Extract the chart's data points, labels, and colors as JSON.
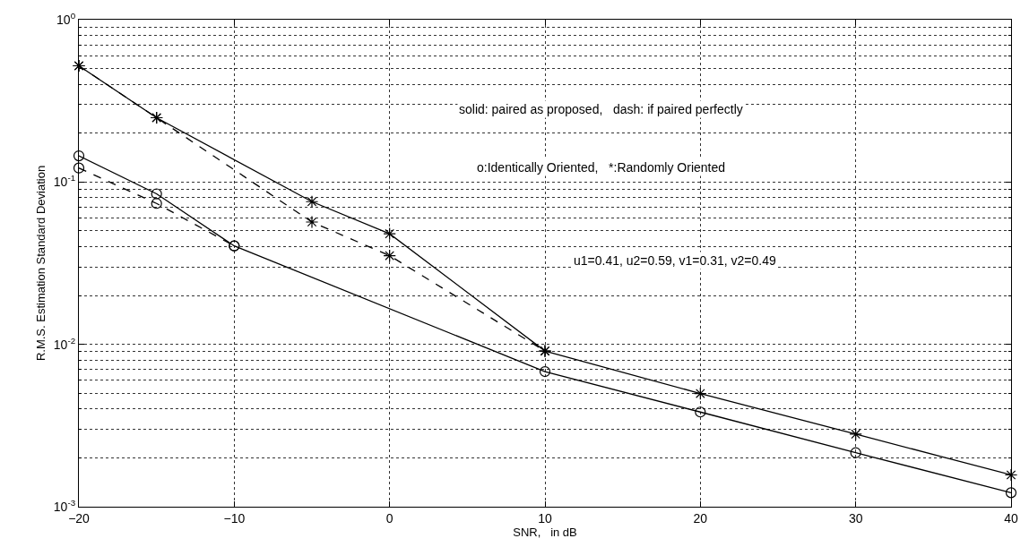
{
  "chart_data": {
    "type": "line",
    "xlabel": "SNR,   in dB",
    "ylabel": "R.M.S. Estimation Standard Deviation",
    "xlim": [
      -20,
      40
    ],
    "xticks": [
      -20,
      -10,
      0,
      10,
      20,
      30,
      40
    ],
    "ylim": [
      0.001,
      1
    ],
    "yticks": [
      {
        "value": 1,
        "label": "10$^{0}$"
      },
      {
        "value": 0.1,
        "label": "10$^{-1}$"
      },
      {
        "value": 0.01,
        "label": "10$^{-2}$"
      },
      {
        "value": 0.001,
        "label": "10$^{-3}$"
      }
    ],
    "log": "y",
    "grid": true,
    "series": [
      {
        "color": "#000000",
        "marker": "cross",
        "line_style": "solid",
        "x": [
          -20,
          -15,
          -5,
          0,
          10,
          20,
          30,
          40
        ],
        "values": [
          0.52,
          0.249,
          0.0757,
          0.048,
          0.0091,
          0.00498,
          0.0028,
          0.00157
        ]
      },
      {
        "color": "#000000",
        "marker": "cross",
        "line_style": "dashed",
        "x": [
          -20,
          -15,
          -5,
          0,
          10
        ],
        "values": [
          0.52,
          0.249,
          0.0567,
          0.0352,
          0.0091
        ]
      },
      {
        "color": "#000000",
        "marker": "circle",
        "line_style": "solid",
        "x": [
          -20,
          -15,
          -10,
          10,
          20,
          30,
          40
        ],
        "values": [
          0.145,
          0.0846,
          0.0404,
          0.0068,
          0.00383,
          0.00215,
          0.00122
        ]
      },
      {
        "color": "#000000",
        "marker": "circle",
        "line_style": "dashed",
        "x": [
          -20,
          -15,
          -10
        ],
        "values": [
          0.122,
          0.0738,
          0.0404
        ]
      }
    ],
    "annotations": [
      "solid: paired as proposed,   dash: if paired perfectly",
      "o:Identically Oriented,   *:Randomly Oriented",
      "u1=0.41, u2=0.59, v1=0.31, v2=0.49"
    ]
  }
}
